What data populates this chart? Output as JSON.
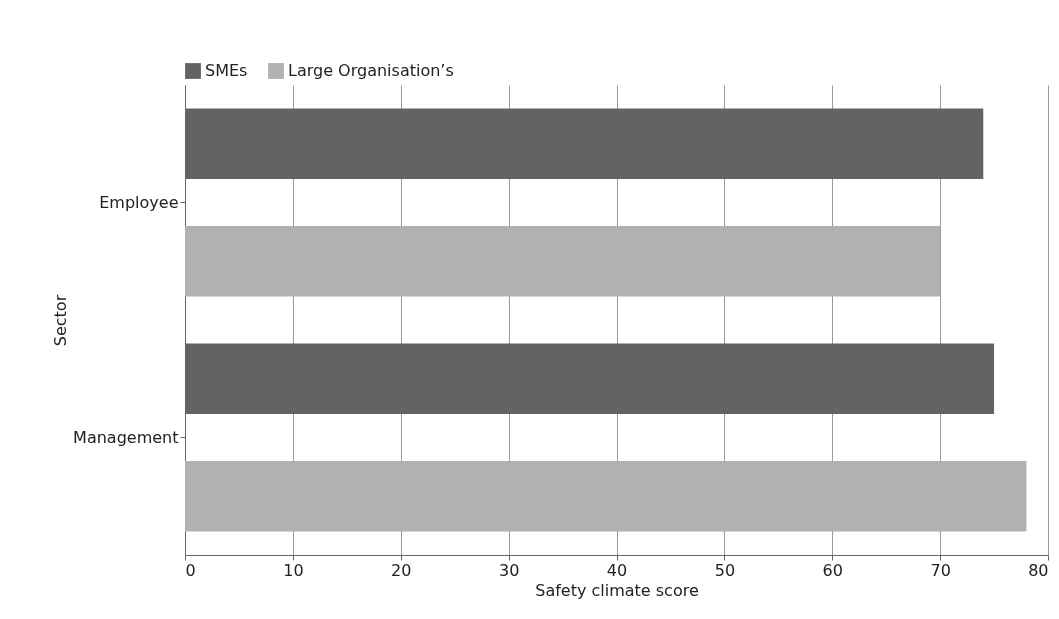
{
  "chart_data": {
    "type": "bar",
    "orientation": "horizontal",
    "xlabel": "Safety climate score",
    "ylabel": "Sector",
    "categories": [
      "Employee",
      "Management"
    ],
    "series": [
      {
        "name": "SMEs",
        "color": "#636363",
        "values": [
          74,
          75
        ]
      },
      {
        "name": "Large Organisation’s",
        "color": "#b0b1b3",
        "values": [
          70,
          78
        ]
      }
    ],
    "xlim": [
      0,
      80
    ],
    "xticks": [
      0,
      10,
      20,
      30,
      40,
      50,
      60,
      70,
      80
    ],
    "grid": "x",
    "legend": "top left"
  }
}
